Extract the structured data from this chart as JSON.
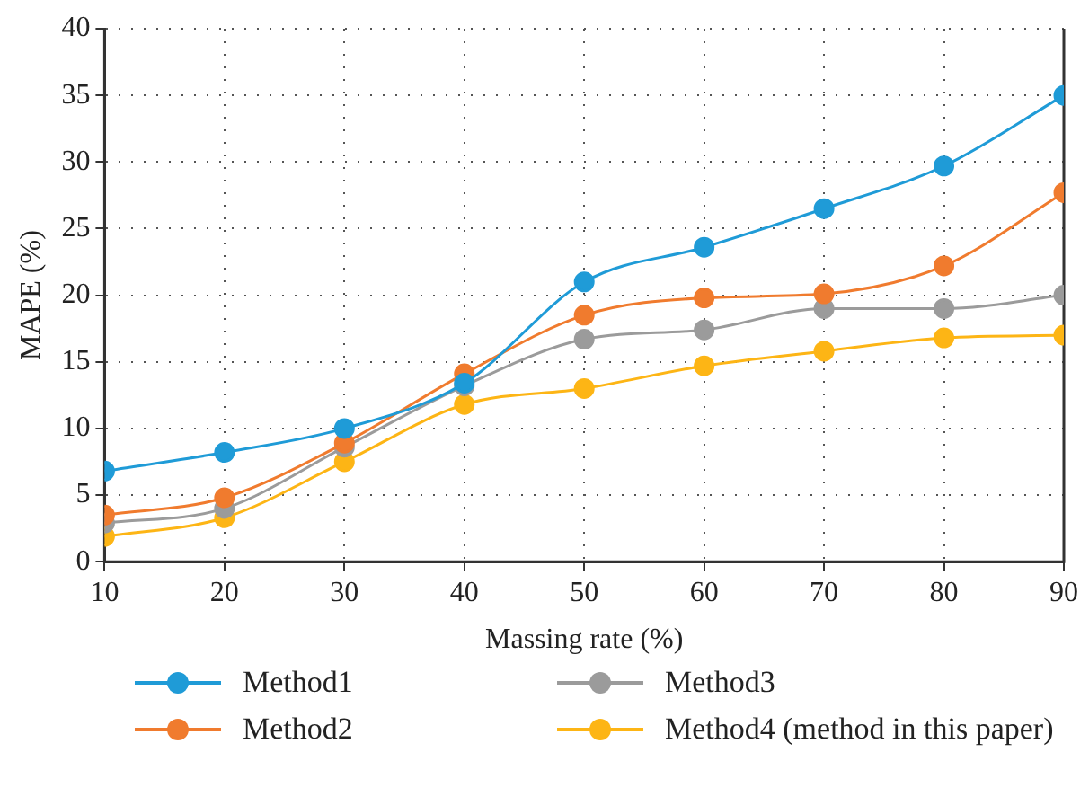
{
  "chart_data": {
    "type": "line",
    "xlabel": "Massing rate (%)",
    "ylabel": "MAPE (%)",
    "x": [
      10,
      20,
      30,
      40,
      50,
      60,
      70,
      80,
      90
    ],
    "xlim": [
      10,
      90
    ],
    "xticks": [
      10,
      20,
      30,
      40,
      50,
      60,
      70,
      80,
      90
    ],
    "ylim": [
      0,
      40
    ],
    "yticks": [
      0,
      5,
      10,
      15,
      20,
      25,
      30,
      35,
      40
    ],
    "grid": true,
    "legend": "bottom",
    "marker": "circle",
    "line_style": "solid",
    "series": [
      {
        "name": "Method1",
        "color": "#1f9bd7",
        "values": [
          6.8,
          8.2,
          10.0,
          13.4,
          21.0,
          23.6,
          26.5,
          29.7,
          35.0
        ]
      },
      {
        "name": "Method2",
        "color": "#f07b2e",
        "values": [
          3.5,
          4.8,
          8.9,
          14.1,
          18.5,
          19.8,
          20.1,
          22.2,
          27.7
        ]
      },
      {
        "name": "Method3",
        "color": "#9b9b9b",
        "values": [
          2.9,
          4.0,
          8.6,
          13.2,
          16.7,
          17.4,
          19.0,
          19.0,
          20.0
        ]
      },
      {
        "name": "Method4 (method in this paper)",
        "color": "#fdb515",
        "values": [
          1.9,
          3.3,
          7.5,
          11.8,
          13.0,
          14.7,
          15.8,
          16.8,
          17.0
        ]
      }
    ]
  }
}
